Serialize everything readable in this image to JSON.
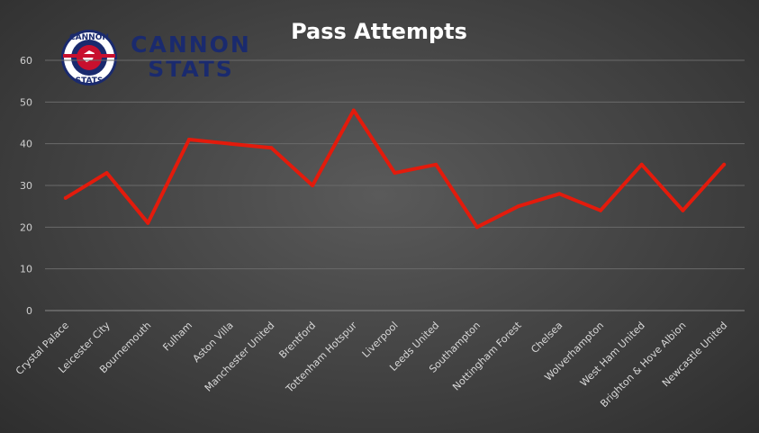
{
  "brand": {
    "line1": "CANNON",
    "line2": "STATS",
    "logo_top": "CANNON",
    "logo_bottom": "STATS"
  },
  "chart_data": {
    "type": "line",
    "title": "Pass Attempts",
    "xlabel": "",
    "ylabel": "",
    "ylim": [
      0,
      60
    ],
    "yticks": [
      0,
      10,
      20,
      30,
      40,
      50,
      60
    ],
    "grid": true,
    "legend": "none",
    "line_color": "#e31b0c",
    "categories": [
      "Crystal Palace",
      "Leicester City",
      "Bournemouth",
      "Fulham",
      "Aston Villa",
      "Manchester United",
      "Brentford",
      "Tottenham Hotspur",
      "Liverpool",
      "Leeds United",
      "Southampton",
      "Nottingham Forest",
      "Chelsea",
      "Wolverhampton",
      "West Ham United",
      "Brighton & Hove Albion",
      "Newcastle United"
    ],
    "series": [
      {
        "values": [
          27,
          33,
          21,
          41,
          40,
          39,
          30,
          48,
          33,
          35,
          20,
          25,
          28,
          24,
          35,
          24,
          35
        ]
      }
    ]
  }
}
